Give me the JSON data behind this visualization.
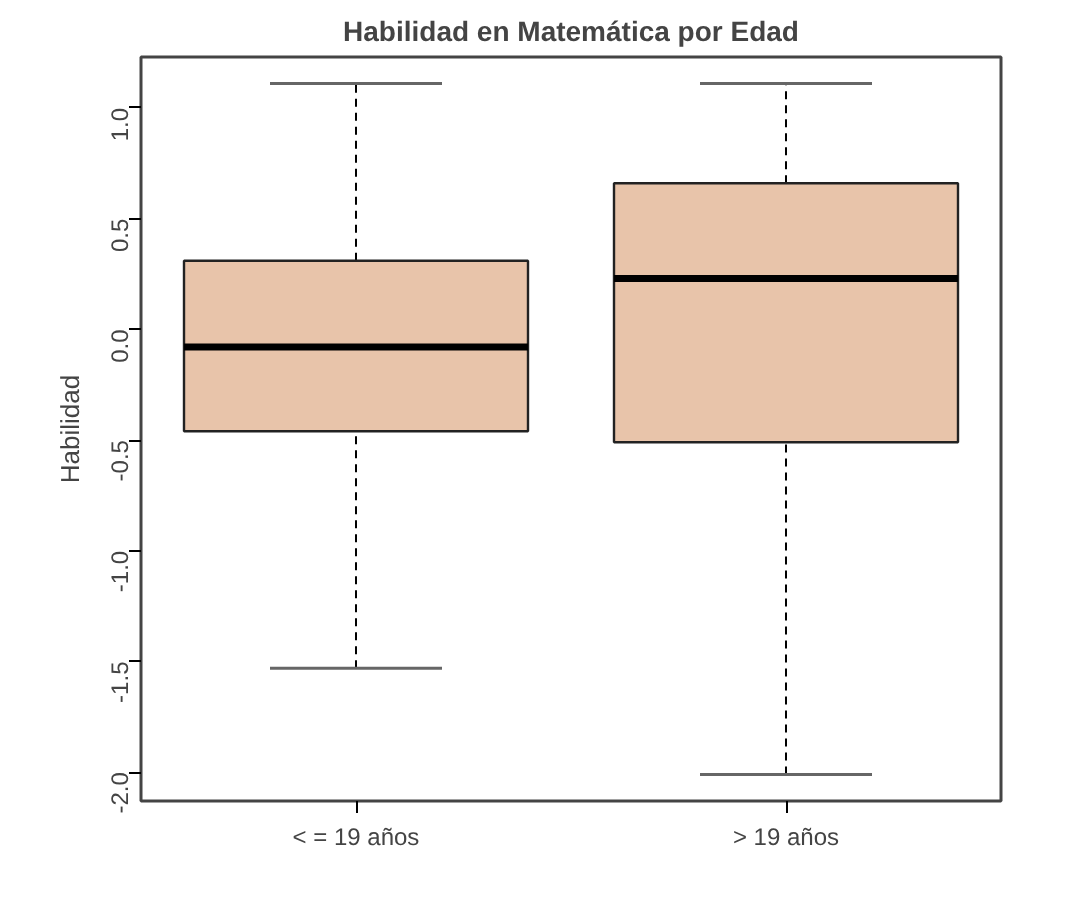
{
  "chart_data": {
    "type": "box",
    "title": "Habilidad en Matemática por Edad",
    "ylabel": "Habilidad",
    "categories": [
      "< = 19 años",
      "> 19 años"
    ],
    "boxes": [
      {
        "low": -1.53,
        "q1": -0.46,
        "median": -0.08,
        "q3": 0.31,
        "high": 1.11
      },
      {
        "low": -2.01,
        "q1": -0.51,
        "median": 0.23,
        "q3": 0.66,
        "high": 1.11
      }
    ],
    "color": "#e8c4aa",
    "ylim": [
      -2.13,
      1.23
    ],
    "yticks": [
      {
        "value": -2,
        "label": "-2.0"
      },
      -1.5,
      {
        "value": -1,
        "label": "-1.0"
      },
      -0.5,
      {
        "value": 0,
        "label": "0.0"
      },
      0.5,
      {
        "value": 1,
        "label": "1.0"
      }
    ],
    "grid": false
  }
}
